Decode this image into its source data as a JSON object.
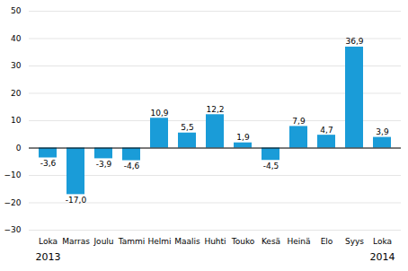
{
  "chart_data": {
    "type": "bar",
    "categories": [
      "Loka",
      "Marras",
      "Joulu",
      "Tammi",
      "Helmi",
      "Maalis",
      "Huhti",
      "Touko",
      "Kesä",
      "Heinä",
      "Elo",
      "Syys",
      "Loka"
    ],
    "values": [
      -3.6,
      -17.0,
      -3.9,
      -4.6,
      10.9,
      5.5,
      12.2,
      1.9,
      -4.5,
      7.9,
      4.7,
      36.9,
      3.9
    ],
    "value_labels": [
      "-3,6",
      "-17,0",
      "-3,9",
      "-4,6",
      "10,9",
      "5,5",
      "12,2",
      "1,9",
      "-4,5",
      "7,9",
      "4,7",
      "36,9",
      "3,9"
    ],
    "data_labels": true,
    "color": "#1a9cd8",
    "ylim": [
      -30,
      50
    ],
    "yticks": [
      -30,
      -20,
      -10,
      0,
      10,
      20,
      30,
      40,
      50
    ],
    "grid": true,
    "annotations": [
      {
        "text": "2013",
        "index": 0
      },
      {
        "text": "2014",
        "index": 12
      }
    ]
  }
}
